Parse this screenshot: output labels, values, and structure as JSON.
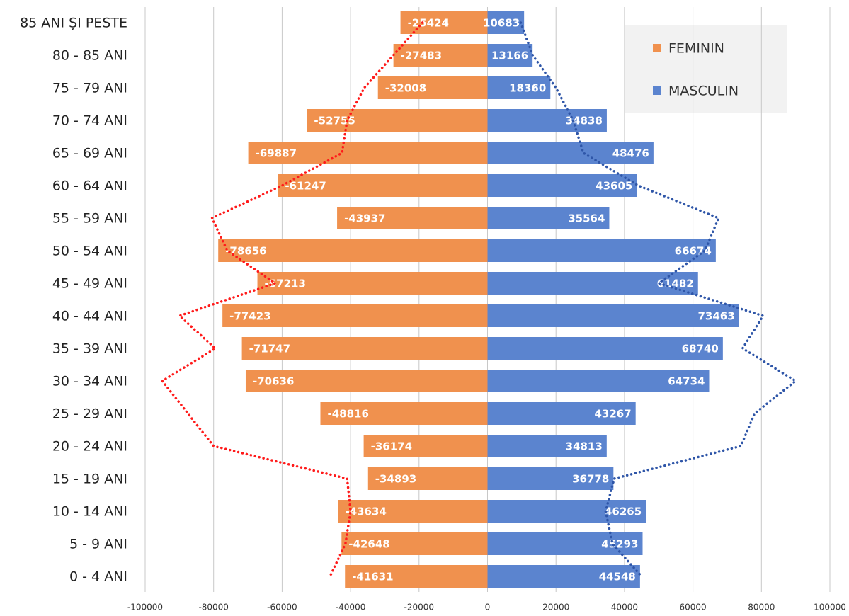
{
  "chart_data": {
    "type": "pyramid",
    "categories": [
      "85 ANI ȘI PESTE",
      "80 - 85 ANI",
      "75 - 79 ANI",
      "70 - 74 ANI",
      "65 - 69 ANI",
      "60 - 64 ANI",
      "55 - 59 ANI",
      "50 - 54 ANI",
      "45 - 49 ANI",
      "40 - 44 ANI",
      "35 - 39 ANI",
      "30 - 34 ANI",
      "25 - 29 ANI",
      "20 - 24 ANI",
      "15 - 19 ANI",
      "10 - 14 ANI",
      "5 - 9 ANI",
      "0 - 4 ANI"
    ],
    "series": [
      {
        "name": "FEMININ",
        "color": "#f0914e",
        "style": "bar",
        "values": [
          -25424,
          -27483,
          -32008,
          -52755,
          -69887,
          -61247,
          -43937,
          -78656,
          -67213,
          -77423,
          -71747,
          -70636,
          -48816,
          -36174,
          -34893,
          -43634,
          -42648,
          -41631
        ]
      },
      {
        "name": "MASCULIN",
        "color": "#5b84cf",
        "style": "bar",
        "values": [
          10683,
          13166,
          18360,
          34838,
          48476,
          43605,
          35564,
          66674,
          61482,
          73463,
          68740,
          64734,
          43267,
          34813,
          36778,
          46265,
          45293,
          44548
        ]
      },
      {
        "color": "#ff1a1a",
        "style": "dotted",
        "values": [
          -19000,
          -27500,
          -36000,
          -41000,
          -42500,
          -60000,
          -80500,
          -76000,
          -62000,
          -90000,
          -79500,
          -95000,
          -87500,
          -80000,
          -41000,
          -40000,
          -41500,
          -46000
        ]
      },
      {
        "color": "#2f56a8",
        "style": "dotted",
        "values": [
          9700,
          13200,
          20000,
          25000,
          28000,
          44000,
          67500,
          63500,
          50000,
          80500,
          74500,
          90000,
          78000,
          74000,
          37000,
          34500,
          36500,
          45000
        ]
      }
    ],
    "xlim": [
      -100000,
      100000
    ],
    "xticks": [
      -100000,
      -80000,
      -60000,
      -40000,
      -20000,
      0,
      20000,
      40000,
      60000,
      80000,
      100000
    ],
    "grid": true,
    "legend": "top-right"
  }
}
